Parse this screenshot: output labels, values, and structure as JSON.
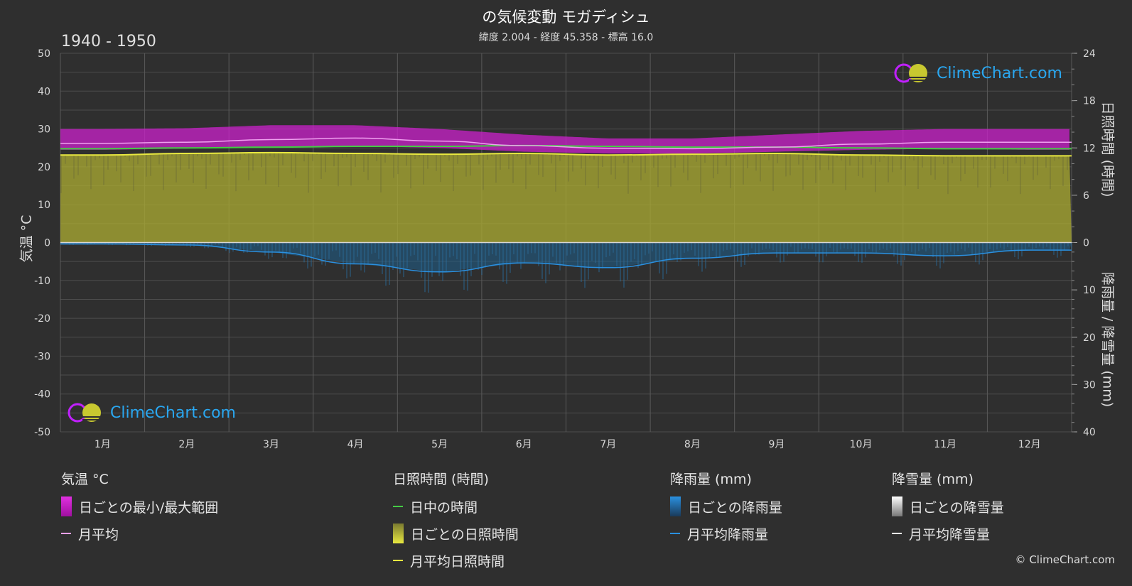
{
  "header": {
    "title": "の気候変動 モガディシュ",
    "subtitle": "緯度 2.004 - 経度 45.358 - 標高 16.0",
    "period": "1940 - 1950"
  },
  "axes": {
    "left_title": "気温 °C",
    "right_top_title": "日照時間 (時間)",
    "right_bottom_title": "降雨量 / 降雪量 (mm)"
  },
  "logo": {
    "text": "ClimeChart.com"
  },
  "copyright": "© ClimeChart.com",
  "legend": {
    "temperature": {
      "title": "気温 °C",
      "items": [
        "日ごとの最小/最大範囲",
        "月平均"
      ]
    },
    "sunshine": {
      "title": "日照時間 (時間)",
      "items": [
        "日中の時間",
        "日ごとの日照時間",
        "月平均日照時間"
      ]
    },
    "rain": {
      "title": "降雨量 (mm)",
      "items": [
        "日ごとの降雨量",
        "月平均降雨量"
      ]
    },
    "snow": {
      "title": "降雪量 (mm)",
      "items": [
        "日ごとの降雪量",
        "月平均降雪量"
      ]
    }
  },
  "colors": {
    "temp_range": "#cc22cc",
    "temp_mean": "#f0a0f0",
    "daylight": "#44cc44",
    "sunshine_fill": "#a8a832",
    "sunshine_mean": "#e8e840",
    "rain_fill": "#1e5f8c",
    "rain_mean": "#2a90e0",
    "snow": "#ffffff"
  },
  "chart_data": {
    "type": "area",
    "categories": [
      "1月",
      "2月",
      "3月",
      "4月",
      "5月",
      "6月",
      "7月",
      "8月",
      "9月",
      "10月",
      "11月",
      "12月"
    ],
    "left_axis": {
      "ylim": [
        -50,
        50
      ],
      "ticks": [
        50,
        40,
        30,
        20,
        10,
        0,
        -10,
        -20,
        -30,
        -40,
        -50
      ]
    },
    "right_sun_axis": {
      "ylim": [
        0,
        24
      ],
      "ticks": [
        24,
        18,
        12,
        6,
        0
      ]
    },
    "right_rain_axis": {
      "ylim": [
        0,
        40
      ],
      "ticks": [
        0,
        10,
        20,
        30,
        40
      ]
    },
    "series": [
      {
        "name": "日ごとの最小/最大範囲",
        "axis": "temperature",
        "min": [
          24.5,
          24.8,
          25.3,
          25.5,
          25.0,
          24.0,
          23.5,
          23.5,
          24.0,
          24.5,
          24.8,
          24.5
        ],
        "max": [
          30.0,
          30.2,
          31.0,
          31.0,
          30.0,
          28.5,
          27.5,
          27.5,
          28.5,
          29.5,
          30.0,
          30.0
        ]
      },
      {
        "name": "月平均",
        "axis": "temperature",
        "values": [
          26.2,
          26.5,
          27.2,
          27.6,
          26.8,
          25.6,
          24.9,
          24.8,
          25.2,
          26.0,
          26.5,
          26.5
        ]
      },
      {
        "name": "日中の時間",
        "axis": "sunshine",
        "values": [
          11.9,
          12.0,
          12.1,
          12.2,
          12.2,
          12.3,
          12.2,
          12.1,
          12.1,
          12.0,
          11.9,
          11.9
        ]
      },
      {
        "name": "月平均日照時間",
        "axis": "sunshine",
        "values": [
          11.1,
          11.3,
          11.4,
          11.3,
          11.2,
          11.3,
          11.1,
          11.2,
          11.3,
          11.1,
          11.0,
          11.0
        ]
      },
      {
        "name": "月平均降雨量",
        "axis": "rain",
        "values": [
          0.3,
          0.5,
          2.0,
          4.5,
          6.2,
          4.3,
          5.3,
          3.3,
          2.2,
          2.2,
          2.8,
          1.6
        ]
      }
    ]
  }
}
